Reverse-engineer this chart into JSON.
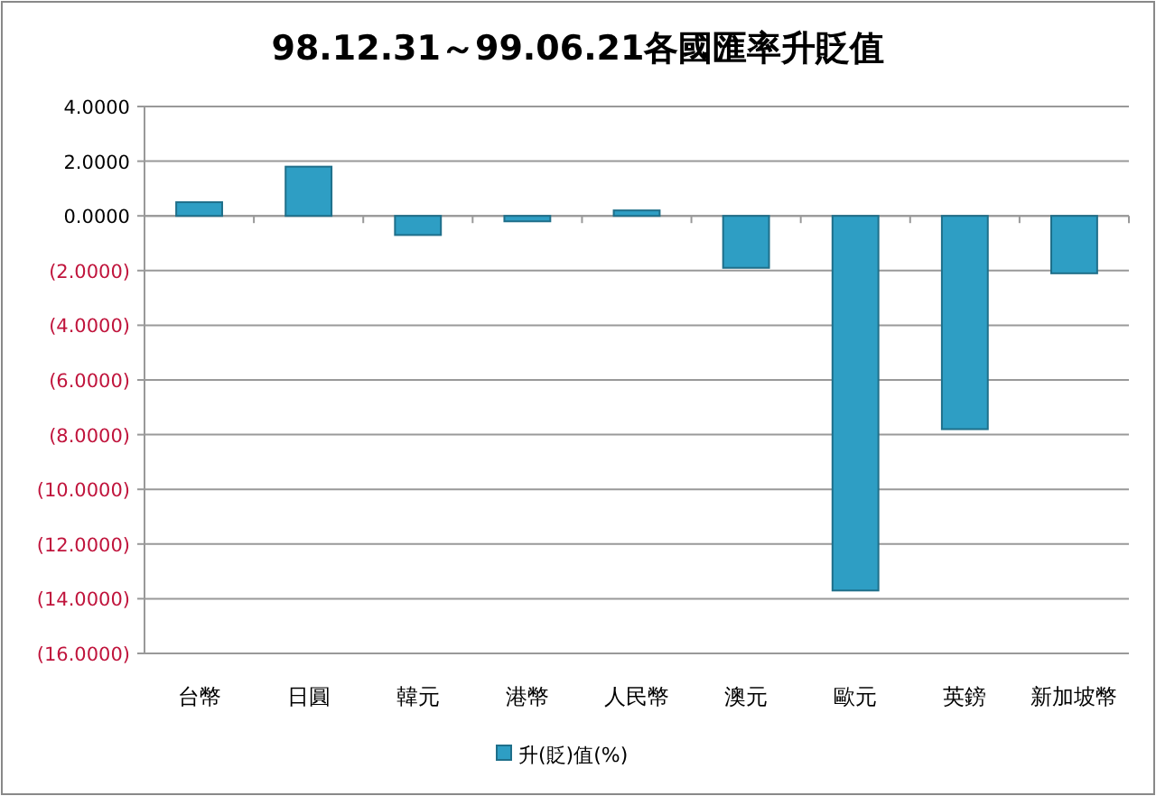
{
  "chart_data": {
    "type": "bar",
    "title": "98.12.31～99.06.21各國匯率升貶值",
    "categories": [
      "台幣",
      "日圓",
      "韓元",
      "港幣",
      "人民幣",
      "澳元",
      "歐元",
      "英鎊",
      "新加坡幣"
    ],
    "series": [
      {
        "name": "升(貶)值(%)",
        "color": "#2e9ec4",
        "values": [
          0.5,
          1.8,
          -0.7,
          -0.2,
          0.2,
          -1.9,
          -13.7,
          -7.8,
          -2.1
        ]
      }
    ],
    "ylim": [
      -16,
      4
    ],
    "yticks": [
      {
        "value": 4,
        "label": "4.0000"
      },
      {
        "value": 2,
        "label": "2.0000"
      },
      {
        "value": 0,
        "label": "0.0000"
      },
      {
        "value": -2,
        "label": "(2.0000)"
      },
      {
        "value": -4,
        "label": "(4.0000)"
      },
      {
        "value": -6,
        "label": "(6.0000)"
      },
      {
        "value": -8,
        "label": "(8.0000)"
      },
      {
        "value": -10,
        "label": "(10.0000)"
      },
      {
        "value": -12,
        "label": "(12.0000)"
      },
      {
        "value": -14,
        "label": "(14.0000)"
      },
      {
        "value": -16,
        "label": "(16.0000)"
      }
    ],
    "grid": "y",
    "legend": "bottom"
  }
}
